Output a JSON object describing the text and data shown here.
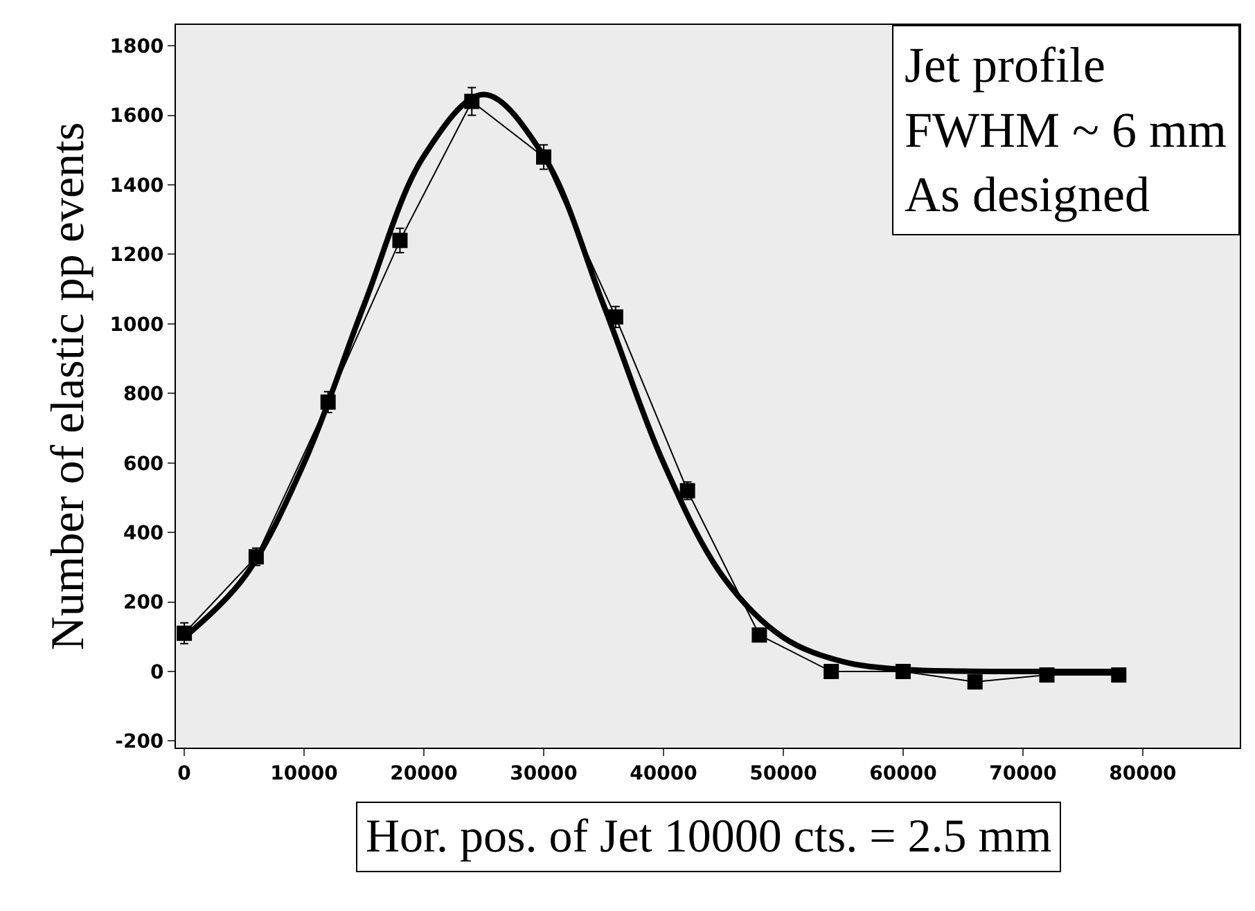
{
  "chart_data": {
    "type": "line",
    "xlabel": "Hor. pos. of Jet 10000 cts. = 2.5 mm",
    "ylabel": "Number of elastic pp events",
    "annotations": [
      "Jet profile\nFWHM ~ 6 mm\nAs designed"
    ],
    "xlim": [
      -700,
      88100
    ],
    "ylim": [
      -219,
      1860
    ],
    "xticks": [
      0,
      10000,
      20000,
      30000,
      40000,
      50000,
      60000,
      70000,
      80000
    ],
    "yticks": [
      -200,
      0,
      200,
      400,
      600,
      800,
      1000,
      1200,
      1400,
      1600,
      1800
    ],
    "grid": false,
    "legend": false,
    "series": [
      {
        "color": "#000000",
        "marker": "square",
        "x": [
          0,
          6000,
          12000,
          18000,
          24000,
          30000,
          36000,
          42000,
          48000,
          54000,
          60000,
          66000,
          72000,
          78000
        ],
        "values": [
          110,
          330,
          775,
          1240,
          1640,
          1480,
          1020,
          520,
          105,
          0,
          0,
          -30,
          -10,
          -10
        ],
        "errors": [
          30,
          25,
          30,
          35,
          40,
          35,
          30,
          25,
          null,
          null,
          null,
          null,
          null,
          null
        ]
      },
      {
        "color": "#000000",
        "marker": "none",
        "x": [
          0,
          5000,
          10000,
          15000,
          20000,
          25000,
          30000,
          35000,
          40000,
          45000,
          50000,
          55000,
          60000,
          65000,
          70000,
          78000
        ],
        "values": [
          98,
          271,
          600,
          1054,
          1483,
          1660,
          1483,
          1054,
          600,
          271,
          98,
          28,
          6,
          1,
          0,
          0
        ]
      }
    ]
  }
}
